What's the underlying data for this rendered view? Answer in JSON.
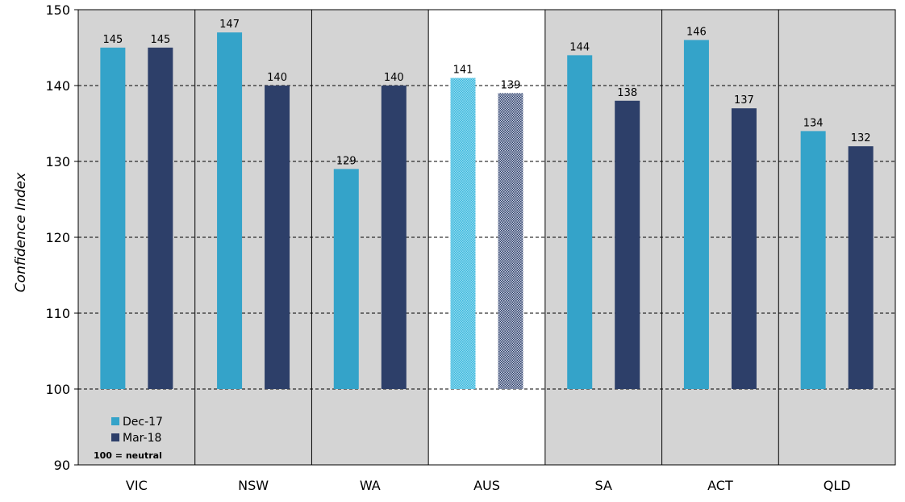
{
  "chart_data": {
    "type": "bar",
    "ylabel": "Confidence Index",
    "ylim": [
      90,
      150
    ],
    "yticks": [
      90,
      100,
      110,
      120,
      130,
      140,
      150
    ],
    "baseline": 100,
    "categories": [
      "VIC",
      "NSW",
      "WA",
      "AUS",
      "SA",
      "ACT",
      "QLD"
    ],
    "highlight_category": "AUS",
    "series": [
      {
        "name": "Dec-17",
        "color": "#34a3c9",
        "values": [
          145,
          147,
          129,
          141,
          144,
          146,
          134
        ],
        "labels": [
          "145",
          "147",
          "129",
          "141",
          "144",
          "146",
          "134"
        ]
      },
      {
        "name": "Mar-18",
        "color": "#2d3f69",
        "values": [
          145,
          140,
          140,
          139,
          138,
          137,
          132
        ],
        "labels": [
          "145",
          "140",
          "140",
          "139",
          "138",
          "137",
          "132"
        ]
      }
    ],
    "note": "100 = neutral",
    "grid": "dashed horizontal",
    "panel_color": "#d4d4d4",
    "legend_position": "bottom-left"
  }
}
